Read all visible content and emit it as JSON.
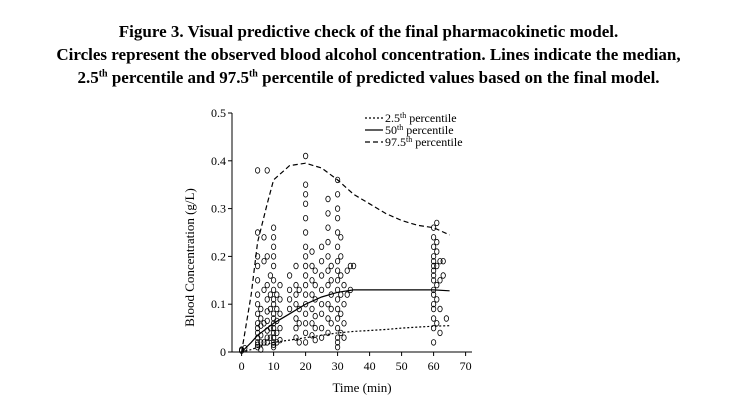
{
  "caption": {
    "line1": "Figure 3. Visual predictive check of the final pharmacokinetic model.",
    "line2": "Circles represent the observed blood alcohol concentration. Lines indicate the median,",
    "line3_a": "2.5",
    "line3_sup1": "th",
    "line3_b": " percentile and 97.5",
    "line3_sup2": "th",
    "line3_c": " percentile of predicted values based on the final model."
  },
  "chart_data": {
    "type": "scatter",
    "xlabel": "Time (min)",
    "ylabel": "Blood Concentration (g/L)",
    "xlim": [
      -3,
      72
    ],
    "ylim": [
      0,
      0.5
    ],
    "xticks": [
      "0",
      "10",
      "20",
      "30",
      "40",
      "50",
      "60",
      "70"
    ],
    "yticks": [
      "0",
      "0.1",
      "0.2",
      "0.3",
      "0.4",
      "0.5"
    ],
    "grid": false,
    "legend_position": "top-right",
    "legend": [
      {
        "name": "2.5",
        "sup": "th",
        "suffix": " percentile",
        "style": "dotted"
      },
      {
        "name": "50",
        "sup": "th",
        "suffix": " percentile",
        "style": "solid"
      },
      {
        "name": "97.5",
        "sup": "th",
        "suffix": " percentile",
        "style": "dashed"
      }
    ],
    "lines": [
      {
        "style": "dashed",
        "points": [
          [
            0,
            0
          ],
          [
            3,
            0.12
          ],
          [
            5,
            0.23
          ],
          [
            8,
            0.31
          ],
          [
            10,
            0.36
          ],
          [
            15,
            0.39
          ],
          [
            20,
            0.395
          ],
          [
            25,
            0.385
          ],
          [
            30,
            0.36
          ],
          [
            35,
            0.33
          ],
          [
            40,
            0.31
          ],
          [
            45,
            0.29
          ],
          [
            50,
            0.275
          ],
          [
            55,
            0.265
          ],
          [
            60,
            0.26
          ],
          [
            65,
            0.245
          ]
        ]
      },
      {
        "style": "solid",
        "points": [
          [
            0,
            0
          ],
          [
            3,
            0.02
          ],
          [
            5,
            0.035
          ],
          [
            10,
            0.06
          ],
          [
            15,
            0.08
          ],
          [
            20,
            0.1
          ],
          [
            25,
            0.115
          ],
          [
            30,
            0.125
          ],
          [
            35,
            0.13
          ],
          [
            40,
            0.13
          ],
          [
            45,
            0.13
          ],
          [
            50,
            0.13
          ],
          [
            55,
            0.13
          ],
          [
            60,
            0.13
          ],
          [
            65,
            0.128
          ]
        ]
      },
      {
        "style": "dotted",
        "points": [
          [
            0,
            0
          ],
          [
            3,
            0.005
          ],
          [
            5,
            0.01
          ],
          [
            10,
            0.02
          ],
          [
            15,
            0.025
          ],
          [
            20,
            0.03
          ],
          [
            25,
            0.035
          ],
          [
            30,
            0.04
          ],
          [
            35,
            0.043
          ],
          [
            40,
            0.045
          ],
          [
            45,
            0.047
          ],
          [
            50,
            0.05
          ],
          [
            55,
            0.052
          ],
          [
            60,
            0.054
          ],
          [
            65,
            0.055
          ]
        ]
      }
    ],
    "points": [
      [
        0,
        0.005
      ],
      [
        0,
        0.003
      ],
      [
        1,
        0.008
      ],
      [
        5,
        0.01
      ],
      [
        5,
        0.015
      ],
      [
        5,
        0.02
      ],
      [
        5,
        0.03
      ],
      [
        5,
        0.04
      ],
      [
        5,
        0.05
      ],
      [
        5,
        0.06
      ],
      [
        5,
        0.08
      ],
      [
        5,
        0.1
      ],
      [
        5,
        0.12
      ],
      [
        5,
        0.15
      ],
      [
        5,
        0.18
      ],
      [
        5,
        0.2
      ],
      [
        5,
        0.25
      ],
      [
        5,
        0.38
      ],
      [
        6,
        0.005
      ],
      [
        6,
        0.02
      ],
      [
        6,
        0.035
      ],
      [
        6,
        0.055
      ],
      [
        6,
        0.07
      ],
      [
        6,
        0.09
      ],
      [
        7,
        0.02
      ],
      [
        7,
        0.06
      ],
      [
        7,
        0.13
      ],
      [
        7,
        0.19
      ],
      [
        7,
        0.24
      ],
      [
        8,
        0.38
      ],
      [
        8,
        0.02
      ],
      [
        8,
        0.03
      ],
      [
        8,
        0.045
      ],
      [
        8,
        0.065
      ],
      [
        8,
        0.085
      ],
      [
        8,
        0.11
      ],
      [
        8,
        0.14
      ],
      [
        8,
        0.2
      ],
      [
        9,
        0.03
      ],
      [
        9,
        0.05
      ],
      [
        9,
        0.09
      ],
      [
        9,
        0.12
      ],
      [
        9,
        0.16
      ],
      [
        10,
        0.01
      ],
      [
        10,
        0.015
      ],
      [
        10,
        0.02
      ],
      [
        10,
        0.03
      ],
      [
        10,
        0.04
      ],
      [
        10,
        0.05
      ],
      [
        10,
        0.06
      ],
      [
        10,
        0.07
      ],
      [
        10,
        0.08
      ],
      [
        10,
        0.1
      ],
      [
        10,
        0.11
      ],
      [
        10,
        0.13
      ],
      [
        10,
        0.15
      ],
      [
        10,
        0.18
      ],
      [
        10,
        0.2
      ],
      [
        10,
        0.22
      ],
      [
        10,
        0.24
      ],
      [
        10,
        0.26
      ],
      [
        11,
        0.02
      ],
      [
        11,
        0.04
      ],
      [
        11,
        0.065
      ],
      [
        11,
        0.09
      ],
      [
        11,
        0.12
      ],
      [
        12,
        0.025
      ],
      [
        12,
        0.05
      ],
      [
        12,
        0.08
      ],
      [
        12,
        0.11
      ],
      [
        12,
        0.14
      ],
      [
        15,
        0.09
      ],
      [
        15,
        0.11
      ],
      [
        15,
        0.13
      ],
      [
        15,
        0.16
      ],
      [
        17,
        0.03
      ],
      [
        17,
        0.05
      ],
      [
        17,
        0.07
      ],
      [
        17,
        0.1
      ],
      [
        17,
        0.12
      ],
      [
        17,
        0.14
      ],
      [
        17,
        0.18
      ],
      [
        18,
        0.02
      ],
      [
        18,
        0.06
      ],
      [
        18,
        0.09
      ],
      [
        18,
        0.13
      ],
      [
        20,
        0.02
      ],
      [
        20,
        0.04
      ],
      [
        20,
        0.06
      ],
      [
        20,
        0.08
      ],
      [
        20,
        0.1
      ],
      [
        20,
        0.12
      ],
      [
        20,
        0.14
      ],
      [
        20,
        0.16
      ],
      [
        20,
        0.18
      ],
      [
        20,
        0.2
      ],
      [
        20,
        0.22
      ],
      [
        20,
        0.25
      ],
      [
        20,
        0.28
      ],
      [
        20,
        0.31
      ],
      [
        20,
        0.33
      ],
      [
        20,
        0.35
      ],
      [
        20,
        0.41
      ],
      [
        22,
        0.035
      ],
      [
        22,
        0.06
      ],
      [
        22,
        0.09
      ],
      [
        22,
        0.12
      ],
      [
        22,
        0.15
      ],
      [
        22,
        0.18
      ],
      [
        22,
        0.21
      ],
      [
        23,
        0.025
      ],
      [
        23,
        0.05
      ],
      [
        23,
        0.075
      ],
      [
        23,
        0.11
      ],
      [
        23,
        0.14
      ],
      [
        23,
        0.17
      ],
      [
        25,
        0.03
      ],
      [
        25,
        0.05
      ],
      [
        25,
        0.08
      ],
      [
        25,
        0.1
      ],
      [
        25,
        0.13
      ],
      [
        25,
        0.16
      ],
      [
        25,
        0.19
      ],
      [
        25,
        0.22
      ],
      [
        27,
        0.04
      ],
      [
        27,
        0.07
      ],
      [
        27,
        0.1
      ],
      [
        27,
        0.14
      ],
      [
        27,
        0.17
      ],
      [
        27,
        0.2
      ],
      [
        27,
        0.23
      ],
      [
        27,
        0.26
      ],
      [
        27,
        0.29
      ],
      [
        27,
        0.32
      ],
      [
        28,
        0.06
      ],
      [
        28,
        0.09
      ],
      [
        28,
        0.12
      ],
      [
        28,
        0.15
      ],
      [
        28,
        0.18
      ],
      [
        30,
        0.01
      ],
      [
        30,
        0.02
      ],
      [
        30,
        0.03
      ],
      [
        30,
        0.05
      ],
      [
        30,
        0.07
      ],
      [
        30,
        0.09
      ],
      [
        30,
        0.11
      ],
      [
        30,
        0.13
      ],
      [
        30,
        0.15
      ],
      [
        30,
        0.17
      ],
      [
        30,
        0.19
      ],
      [
        30,
        0.22
      ],
      [
        30,
        0.25
      ],
      [
        30,
        0.28
      ],
      [
        30,
        0.3
      ],
      [
        30,
        0.33
      ],
      [
        30,
        0.36
      ],
      [
        31,
        0.04
      ],
      [
        31,
        0.08
      ],
      [
        31,
        0.12
      ],
      [
        31,
        0.16
      ],
      [
        31,
        0.2
      ],
      [
        31,
        0.24
      ],
      [
        32,
        0.03
      ],
      [
        32,
        0.06
      ],
      [
        32,
        0.1
      ],
      [
        32,
        0.14
      ],
      [
        33,
        0.12
      ],
      [
        33,
        0.17
      ],
      [
        34,
        0.13
      ],
      [
        34,
        0.18
      ],
      [
        35,
        0.18
      ],
      [
        60,
        0.02
      ],
      [
        60,
        0.05
      ],
      [
        60,
        0.07
      ],
      [
        60,
        0.09
      ],
      [
        60,
        0.1
      ],
      [
        60,
        0.12
      ],
      [
        60,
        0.13
      ],
      [
        60,
        0.15
      ],
      [
        60,
        0.16
      ],
      [
        60,
        0.17
      ],
      [
        60,
        0.18
      ],
      [
        60,
        0.19
      ],
      [
        60,
        0.2
      ],
      [
        60,
        0.22
      ],
      [
        60,
        0.24
      ],
      [
        60,
        0.26
      ],
      [
        61,
        0.06
      ],
      [
        61,
        0.11
      ],
      [
        61,
        0.14
      ],
      [
        61,
        0.18
      ],
      [
        61,
        0.21
      ],
      [
        61,
        0.23
      ],
      [
        61,
        0.27
      ],
      [
        62,
        0.04
      ],
      [
        62,
        0.09
      ],
      [
        62,
        0.15
      ],
      [
        62,
        0.19
      ],
      [
        63,
        0.16
      ],
      [
        63,
        0.19
      ],
      [
        64,
        0.07
      ]
    ]
  }
}
